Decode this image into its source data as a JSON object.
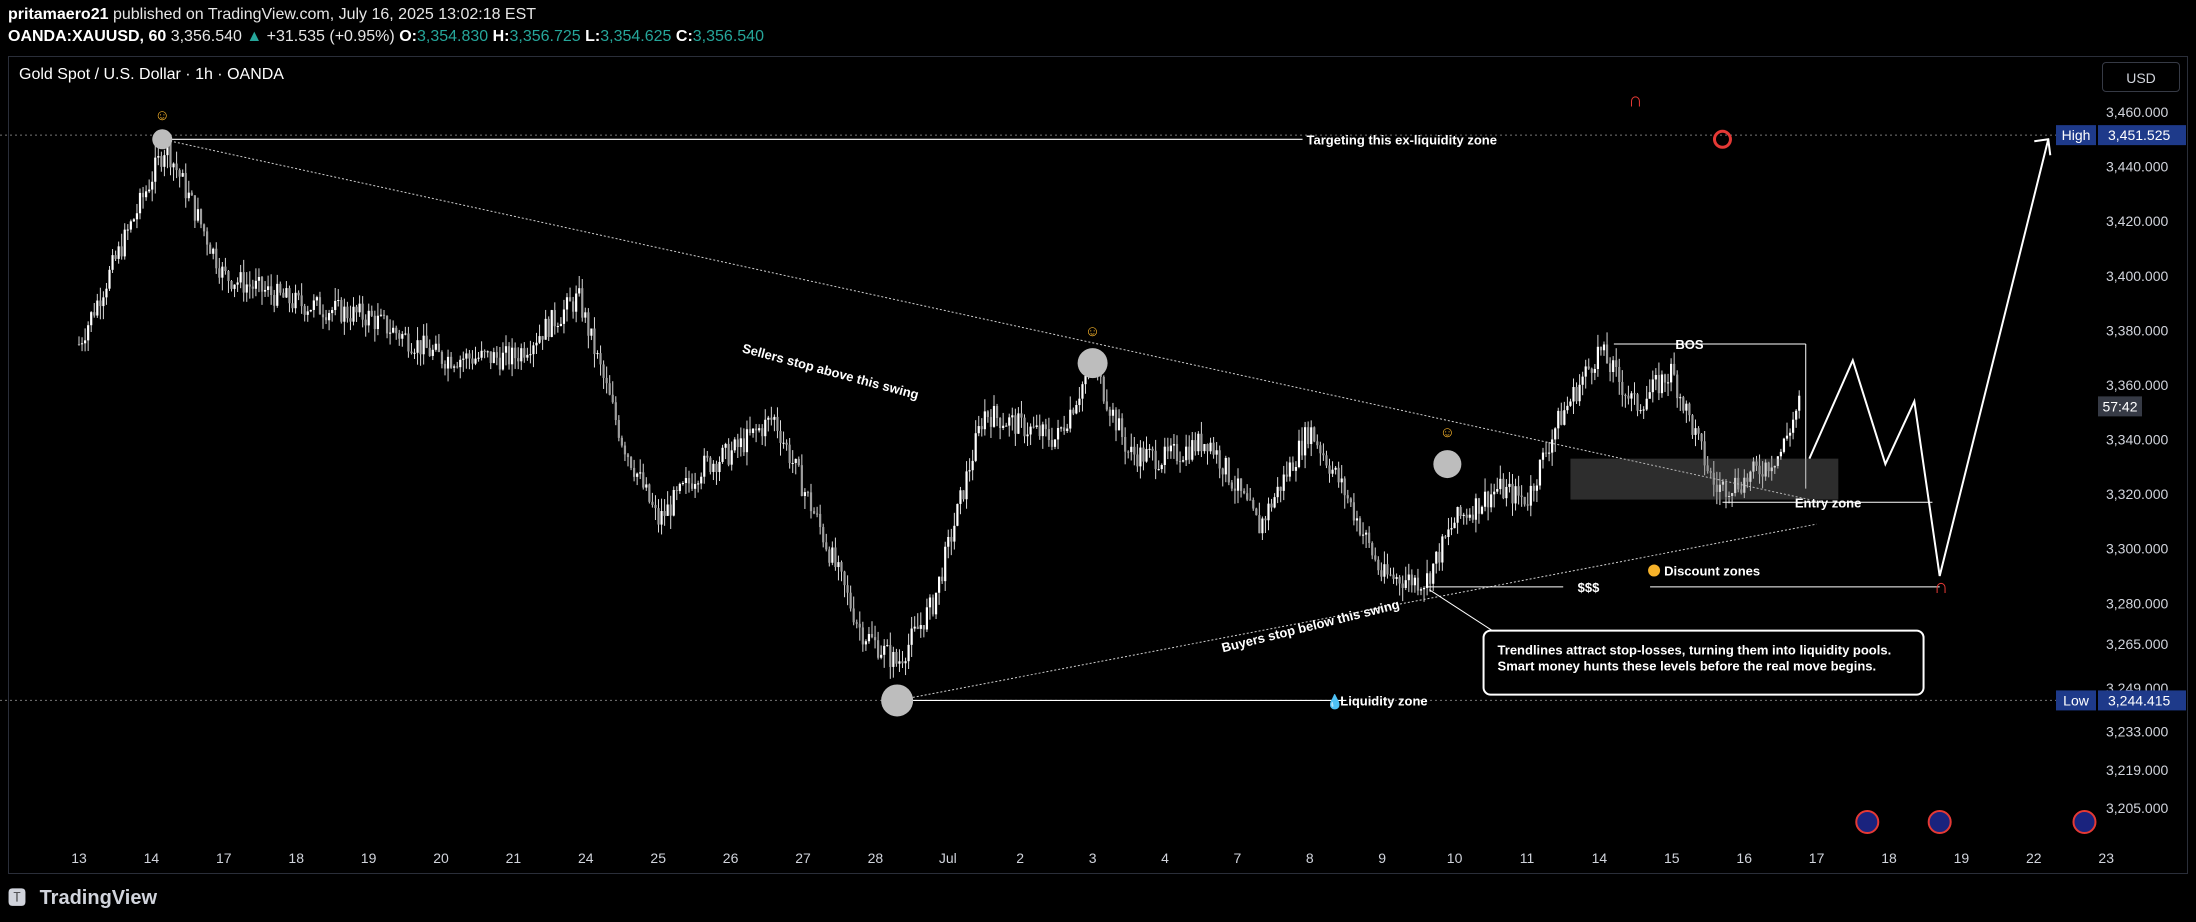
{
  "header": {
    "author": "pritamaero21",
    "published": "published on TradingView.com, July 16, 2025 13:02:18 EST",
    "symbol": "OANDA:XAUUSD, 60",
    "last": "3,356.540",
    "change": "+31.535 (+0.95%)",
    "o_label": "O:",
    "o": "3,354.830",
    "h_label": "H:",
    "h": "3,356.725",
    "l_label": "L:",
    "l": "3,354.625",
    "c_label": "C:",
    "c": "3,356.540"
  },
  "chart_title": "Gold Spot / U.S. Dollar · 1h · OANDA",
  "currency_button": "USD",
  "footer": {
    "brand": "TradingView",
    "logo": "tradingview-logo"
  },
  "colors": {
    "up": "#26a69a",
    "candle": "#d9d9d9",
    "badge": "#1e3a8a",
    "line": "#ffffff",
    "marker": "#bdbdbd",
    "discount": "#f6b22a"
  },
  "chart_data": {
    "type": "candlestick",
    "title": "Gold Spot / U.S. Dollar · 1h · OANDA",
    "ylim": [
      3190,
      3475
    ],
    "y_ticks": [
      {
        "v": 3460,
        "label": "3,460.000"
      },
      {
        "v": 3440,
        "label": "3,440.000"
      },
      {
        "v": 3420,
        "label": "3,420.000"
      },
      {
        "v": 3400,
        "label": "3,400.000"
      },
      {
        "v": 3380,
        "label": "3,380.000"
      },
      {
        "v": 3360,
        "label": "3,360.000"
      },
      {
        "v": 3340,
        "label": "3,340.000"
      },
      {
        "v": 3320,
        "label": "3,320.000"
      },
      {
        "v": 3300,
        "label": "3,300.000"
      },
      {
        "v": 3280,
        "label": "3,280.000"
      },
      {
        "v": 3265,
        "label": "3,265.000"
      },
      {
        "v": 3249,
        "label": "3,249.000"
      },
      {
        "v": 3233,
        "label": "3,233.000"
      },
      {
        "v": 3219,
        "label": "3,219.000"
      },
      {
        "v": 3205,
        "label": "3,205.000"
      }
    ],
    "x_ticks": [
      "13",
      "14",
      "17",
      "18",
      "19",
      "20",
      "21",
      "24",
      "25",
      "26",
      "27",
      "28",
      "Jul",
      "2",
      "3",
      "4",
      "7",
      "8",
      "9",
      "10",
      "11",
      "14",
      "15",
      "16",
      "17",
      "18",
      "19",
      "22",
      "23"
    ],
    "x_index": [
      0,
      1,
      2,
      3,
      4,
      5,
      6,
      7,
      8,
      9,
      10,
      11,
      12,
      13,
      14,
      15,
      16,
      17,
      18,
      19,
      20,
      21,
      22,
      23,
      24,
      25,
      26,
      27,
      28
    ],
    "price_path": [
      {
        "x": 0,
        "y": 3375
      },
      {
        "x": 1.2,
        "y": 3448
      },
      {
        "x": 2,
        "y": 3400
      },
      {
        "x": 3,
        "y": 3390
      },
      {
        "x": 4,
        "y": 3385
      },
      {
        "x": 5,
        "y": 3370
      },
      {
        "x": 6,
        "y": 3370
      },
      {
        "x": 6.9,
        "y": 3392
      },
      {
        "x": 7.5,
        "y": 3340
      },
      {
        "x": 8,
        "y": 3310
      },
      {
        "x": 8.6,
        "y": 3330
      },
      {
        "x": 9,
        "y": 3335
      },
      {
        "x": 9.6,
        "y": 3348
      },
      {
        "x": 10.2,
        "y": 3310
      },
      {
        "x": 10.8,
        "y": 3270
      },
      {
        "x": 11.3,
        "y": 3258
      },
      {
        "x": 11.8,
        "y": 3280
      },
      {
        "x": 12.5,
        "y": 3350
      },
      {
        "x": 13,
        "y": 3345
      },
      {
        "x": 13.5,
        "y": 3340
      },
      {
        "x": 14,
        "y": 3368
      },
      {
        "x": 14.5,
        "y": 3335
      },
      {
        "x": 15,
        "y": 3333
      },
      {
        "x": 15.6,
        "y": 3340
      },
      {
        "x": 16.3,
        "y": 3308
      },
      {
        "x": 17,
        "y": 3344
      },
      {
        "x": 17.5,
        "y": 3320
      },
      {
        "x": 18,
        "y": 3290
      },
      {
        "x": 18.6,
        "y": 3288
      },
      {
        "x": 19,
        "y": 3310
      },
      {
        "x": 19.6,
        "y": 3322
      },
      {
        "x": 20,
        "y": 3318
      },
      {
        "x": 20.4,
        "y": 3345
      },
      {
        "x": 21,
        "y": 3373
      },
      {
        "x": 21.5,
        "y": 3352
      },
      {
        "x": 22,
        "y": 3365
      },
      {
        "x": 22.6,
        "y": 3322
      },
      {
        "x": 23,
        "y": 3325
      },
      {
        "x": 23.5,
        "y": 3335
      },
      {
        "x": 23.8,
        "y": 3356
      }
    ],
    "last_price": 3356.54,
    "countdown": "57:42",
    "high": {
      "label": "High",
      "value": 3451.525,
      "text": "3,451.525"
    },
    "low": {
      "label": "Low",
      "value": 3244.415,
      "text": "3,244.415"
    },
    "annotations": {
      "target": "Targeting this ex-liquidity zone",
      "sellers": "Sellers stop above this swing",
      "buyers": "Buyers stop below this swing",
      "bos": "BOS",
      "entry": "Entry zone",
      "discount": "Discount zones",
      "dollars": "$$$",
      "liquidity": "Liquidity zone",
      "callout_line1": "Trendlines attract stop-losses, turning them into liquidity pools.",
      "callout_line2": "Smart money hunts these levels before the real move begins."
    },
    "projection": [
      {
        "x": 23.9,
        "y": 3333
      },
      {
        "x": 24.5,
        "y": 3369
      },
      {
        "x": 24.95,
        "y": 3331
      },
      {
        "x": 25.35,
        "y": 3354
      },
      {
        "x": 25.7,
        "y": 3290
      },
      {
        "x": 27.2,
        "y": 3450
      }
    ],
    "event_icons": [
      {
        "x": 24.7
      },
      {
        "x": 25.7
      },
      {
        "x": 27.7
      }
    ]
  }
}
